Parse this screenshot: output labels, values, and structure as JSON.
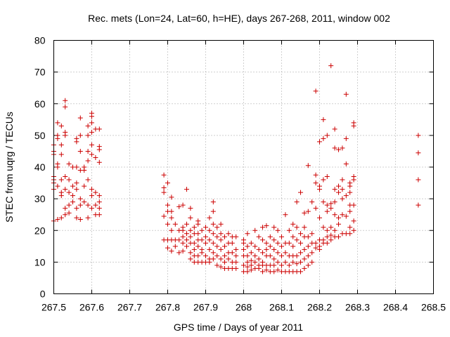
{
  "chart_data": {
    "type": "scatter",
    "title": "Rec. mets (Lon=24, Lat=60, h=HE), days 267-268, 2011, window 002",
    "xlabel": "GPS time / Days of year 2011",
    "ylabel": "STEC from uqrg / TECUs",
    "xlim": [
      267.5,
      268.5
    ],
    "ylim": [
      0,
      80
    ],
    "x_ticks": [
      "267.5",
      "267.6",
      "267.7",
      "267.8",
      "267.9",
      "268",
      "268.1",
      "268.2",
      "268.3",
      "268.4",
      "268.5"
    ],
    "y_ticks": [
      "0",
      "10",
      "20",
      "30",
      "40",
      "50",
      "60",
      "70",
      "80"
    ],
    "grid": true,
    "legend": "none",
    "marker": "plus",
    "color": "#cc0000",
    "points": [
      [
        267.5,
        23
      ],
      [
        267.5,
        33
      ],
      [
        267.5,
        35
      ],
      [
        267.5,
        36
      ],
      [
        267.5,
        37
      ],
      [
        267.5,
        44
      ],
      [
        267.5,
        45
      ],
      [
        267.5,
        47
      ],
      [
        267.51,
        23.5
      ],
      [
        267.51,
        34
      ],
      [
        267.51,
        40
      ],
      [
        267.51,
        41
      ],
      [
        267.51,
        49
      ],
      [
        267.51,
        50
      ],
      [
        267.51,
        54
      ],
      [
        267.52,
        24
      ],
      [
        267.52,
        31
      ],
      [
        267.52,
        32
      ],
      [
        267.52,
        36
      ],
      [
        267.52,
        44
      ],
      [
        267.52,
        47
      ],
      [
        267.52,
        53
      ],
      [
        267.53,
        25
      ],
      [
        267.53,
        27
      ],
      [
        267.53,
        33
      ],
      [
        267.53,
        37
      ],
      [
        267.53,
        50
      ],
      [
        267.53,
        51
      ],
      [
        267.53,
        59
      ],
      [
        267.53,
        61
      ],
      [
        267.54,
        25.5
      ],
      [
        267.54,
        28
      ],
      [
        267.54,
        32
      ],
      [
        267.54,
        36
      ],
      [
        267.54,
        41
      ],
      [
        267.55,
        29
      ],
      [
        267.55,
        31
      ],
      [
        267.55,
        34
      ],
      [
        267.55,
        40
      ],
      [
        267.56,
        24
      ],
      [
        267.56,
        27
      ],
      [
        267.56,
        33
      ],
      [
        267.56,
        35
      ],
      [
        267.56,
        40
      ],
      [
        267.56,
        48
      ],
      [
        267.56,
        49
      ],
      [
        267.57,
        23.5
      ],
      [
        267.57,
        28
      ],
      [
        267.57,
        30
      ],
      [
        267.57,
        39
      ],
      [
        267.57,
        45
      ],
      [
        267.57,
        50
      ],
      [
        267.57,
        55.5
      ],
      [
        267.58,
        29
      ],
      [
        267.58,
        34
      ],
      [
        267.58,
        39
      ],
      [
        267.58,
        40
      ],
      [
        267.59,
        24
      ],
      [
        267.59,
        28
      ],
      [
        267.59,
        36
      ],
      [
        267.59,
        42
      ],
      [
        267.59,
        45
      ],
      [
        267.59,
        50
      ],
      [
        267.59,
        53
      ],
      [
        267.6,
        27
      ],
      [
        267.6,
        31
      ],
      [
        267.6,
        33
      ],
      [
        267.6,
        44
      ],
      [
        267.6,
        47
      ],
      [
        267.6,
        51
      ],
      [
        267.6,
        54
      ],
      [
        267.6,
        56
      ],
      [
        267.6,
        57
      ],
      [
        267.61,
        25
      ],
      [
        267.61,
        28
      ],
      [
        267.61,
        32
      ],
      [
        267.61,
        43
      ],
      [
        267.61,
        52
      ],
      [
        267.62,
        25
      ],
      [
        267.62,
        27
      ],
      [
        267.62,
        29
      ],
      [
        267.62,
        31
      ],
      [
        267.62,
        41.5
      ],
      [
        267.62,
        45.5
      ],
      [
        267.62,
        46.5
      ],
      [
        267.62,
        52
      ],
      [
        267.79,
        17
      ],
      [
        267.79,
        24.5
      ],
      [
        267.79,
        32
      ],
      [
        267.79,
        33.5
      ],
      [
        267.79,
        37.5
      ],
      [
        267.8,
        14.5
      ],
      [
        267.8,
        17
      ],
      [
        267.8,
        22
      ],
      [
        267.8,
        26
      ],
      [
        267.8,
        28
      ],
      [
        267.8,
        35
      ],
      [
        267.81,
        13.5
      ],
      [
        267.81,
        17
      ],
      [
        267.81,
        20
      ],
      [
        267.81,
        24
      ],
      [
        267.81,
        26
      ],
      [
        267.81,
        30.5
      ],
      [
        267.82,
        15
      ],
      [
        267.82,
        17
      ],
      [
        267.82,
        22
      ],
      [
        267.83,
        13
      ],
      [
        267.83,
        17
      ],
      [
        267.83,
        20
      ],
      [
        267.83,
        27.5
      ],
      [
        267.84,
        13.5
      ],
      [
        267.84,
        16
      ],
      [
        267.84,
        18
      ],
      [
        267.84,
        20
      ],
      [
        267.84,
        21
      ],
      [
        267.84,
        28
      ],
      [
        267.85,
        15
      ],
      [
        267.85,
        17
      ],
      [
        267.85,
        19
      ],
      [
        267.85,
        22
      ],
      [
        267.85,
        33
      ],
      [
        267.86,
        11
      ],
      [
        267.86,
        13
      ],
      [
        267.86,
        16
      ],
      [
        267.86,
        18
      ],
      [
        267.86,
        20
      ],
      [
        267.86,
        24
      ],
      [
        267.86,
        27
      ],
      [
        267.87,
        10
      ],
      [
        267.87,
        12
      ],
      [
        267.87,
        14
      ],
      [
        267.87,
        16
      ],
      [
        267.87,
        19
      ],
      [
        267.87,
        21
      ],
      [
        267.88,
        10
      ],
      [
        267.88,
        12
      ],
      [
        267.88,
        15
      ],
      [
        267.88,
        17
      ],
      [
        267.88,
        19
      ],
      [
        267.88,
        22
      ],
      [
        267.88,
        23
      ],
      [
        267.89,
        10
      ],
      [
        267.89,
        13
      ],
      [
        267.89,
        14
      ],
      [
        267.89,
        17
      ],
      [
        267.89,
        20
      ],
      [
        267.9,
        10
      ],
      [
        267.9,
        12
      ],
      [
        267.9,
        16
      ],
      [
        267.9,
        18
      ],
      [
        267.9,
        21
      ],
      [
        267.91,
        10
      ],
      [
        267.91,
        11
      ],
      [
        267.91,
        14
      ],
      [
        267.91,
        17
      ],
      [
        267.91,
        20
      ],
      [
        267.91,
        24
      ],
      [
        267.92,
        11
      ],
      [
        267.92,
        13
      ],
      [
        267.92,
        16
      ],
      [
        267.92,
        19
      ],
      [
        267.92,
        22
      ],
      [
        267.92,
        26
      ],
      [
        267.92,
        29
      ],
      [
        267.93,
        9
      ],
      [
        267.93,
        12
      ],
      [
        267.93,
        15
      ],
      [
        267.93,
        18
      ],
      [
        267.93,
        21
      ],
      [
        267.94,
        8.5
      ],
      [
        267.94,
        11
      ],
      [
        267.94,
        14
      ],
      [
        267.94,
        17
      ],
      [
        267.94,
        19
      ],
      [
        267.94,
        22
      ],
      [
        267.95,
        8
      ],
      [
        267.95,
        10
      ],
      [
        267.95,
        12
      ],
      [
        267.95,
        15
      ],
      [
        267.95,
        18
      ],
      [
        267.96,
        8
      ],
      [
        267.96,
        11
      ],
      [
        267.96,
        13
      ],
      [
        267.96,
        16
      ],
      [
        267.96,
        19
      ],
      [
        267.97,
        8
      ],
      [
        267.97,
        10
      ],
      [
        267.97,
        13
      ],
      [
        267.97,
        16
      ],
      [
        267.97,
        18
      ],
      [
        267.98,
        8
      ],
      [
        267.98,
        10
      ],
      [
        267.98,
        12
      ],
      [
        267.98,
        14
      ],
      [
        267.98,
        18
      ],
      [
        268.0,
        7
      ],
      [
        268.0,
        9
      ],
      [
        268.0,
        12
      ],
      [
        268.0,
        14
      ],
      [
        268.0,
        16
      ],
      [
        268.0,
        17
      ],
      [
        268.01,
        7
      ],
      [
        268.01,
        8.5
      ],
      [
        268.01,
        10
      ],
      [
        268.01,
        12
      ],
      [
        268.01,
        15
      ],
      [
        268.01,
        19
      ],
      [
        268.02,
        7.5
      ],
      [
        268.02,
        9
      ],
      [
        268.02,
        10.5
      ],
      [
        268.02,
        13
      ],
      [
        268.02,
        16
      ],
      [
        268.03,
        8
      ],
      [
        268.03,
        10
      ],
      [
        268.03,
        12
      ],
      [
        268.03,
        15
      ],
      [
        268.03,
        20
      ],
      [
        268.04,
        8
      ],
      [
        268.04,
        9
      ],
      [
        268.04,
        11
      ],
      [
        268.04,
        14
      ],
      [
        268.04,
        18
      ],
      [
        268.05,
        7
      ],
      [
        268.05,
        9
      ],
      [
        268.05,
        10
      ],
      [
        268.05,
        13
      ],
      [
        268.05,
        17
      ],
      [
        268.05,
        21
      ],
      [
        268.06,
        7.5
      ],
      [
        268.06,
        9
      ],
      [
        268.06,
        12
      ],
      [
        268.06,
        14
      ],
      [
        268.06,
        16
      ],
      [
        268.06,
        21.5
      ],
      [
        268.07,
        7
      ],
      [
        268.07,
        9
      ],
      [
        268.07,
        12
      ],
      [
        268.07,
        15
      ],
      [
        268.07,
        18
      ],
      [
        268.08,
        7
      ],
      [
        268.08,
        9
      ],
      [
        268.08,
        11
      ],
      [
        268.08,
        14
      ],
      [
        268.08,
        17
      ],
      [
        268.08,
        21
      ],
      [
        268.09,
        7.5
      ],
      [
        268.09,
        10
      ],
      [
        268.09,
        13
      ],
      [
        268.09,
        16
      ],
      [
        268.09,
        20
      ],
      [
        268.1,
        7
      ],
      [
        268.1,
        9
      ],
      [
        268.1,
        12
      ],
      [
        268.1,
        15
      ],
      [
        268.1,
        18
      ],
      [
        268.11,
        7
      ],
      [
        268.11,
        10
      ],
      [
        268.11,
        13
      ],
      [
        268.11,
        16
      ],
      [
        268.11,
        25
      ],
      [
        268.12,
        7
      ],
      [
        268.12,
        9
      ],
      [
        268.12,
        12
      ],
      [
        268.12,
        16
      ],
      [
        268.12,
        20
      ],
      [
        268.13,
        7
      ],
      [
        268.13,
        10
      ],
      [
        268.13,
        12
      ],
      [
        268.13,
        15
      ],
      [
        268.13,
        18
      ],
      [
        268.13,
        22
      ],
      [
        268.14,
        7
      ],
      [
        268.14,
        9.5
      ],
      [
        268.14,
        12
      ],
      [
        268.14,
        17
      ],
      [
        268.14,
        21
      ],
      [
        268.14,
        29
      ],
      [
        268.15,
        7
      ],
      [
        268.15,
        10
      ],
      [
        268.15,
        13
      ],
      [
        268.15,
        16
      ],
      [
        268.15,
        19
      ],
      [
        268.15,
        32
      ],
      [
        268.16,
        8
      ],
      [
        268.16,
        11
      ],
      [
        268.16,
        14
      ],
      [
        268.16,
        18
      ],
      [
        268.16,
        21
      ],
      [
        268.16,
        25.5
      ],
      [
        268.17,
        9
      ],
      [
        268.17,
        12
      ],
      [
        268.17,
        15
      ],
      [
        268.17,
        18
      ],
      [
        268.17,
        26
      ],
      [
        268.17,
        40.5
      ],
      [
        268.18,
        10
      ],
      [
        268.18,
        13
      ],
      [
        268.18,
        16
      ],
      [
        268.18,
        19
      ],
      [
        268.18,
        29
      ],
      [
        268.19,
        14.5
      ],
      [
        268.19,
        16
      ],
      [
        268.19,
        27
      ],
      [
        268.19,
        35
      ],
      [
        268.19,
        37.5
      ],
      [
        268.19,
        64
      ],
      [
        268.2,
        14
      ],
      [
        268.2,
        15
      ],
      [
        268.2,
        17
      ],
      [
        268.2,
        24
      ],
      [
        268.2,
        33
      ],
      [
        268.2,
        34
      ],
      [
        268.2,
        48
      ],
      [
        268.21,
        16
      ],
      [
        268.21,
        17
      ],
      [
        268.21,
        21
      ],
      [
        268.21,
        29
      ],
      [
        268.21,
        36
      ],
      [
        268.21,
        49
      ],
      [
        268.21,
        55
      ],
      [
        268.22,
        16
      ],
      [
        268.22,
        18
      ],
      [
        268.22,
        20
      ],
      [
        268.22,
        26
      ],
      [
        268.22,
        28
      ],
      [
        268.22,
        37
      ],
      [
        268.22,
        50
      ],
      [
        268.23,
        17
      ],
      [
        268.23,
        18.5
      ],
      [
        268.23,
        21
      ],
      [
        268.23,
        27
      ],
      [
        268.23,
        28.5
      ],
      [
        268.23,
        72
      ],
      [
        268.24,
        18
      ],
      [
        268.24,
        20
      ],
      [
        268.24,
        25
      ],
      [
        268.24,
        29
      ],
      [
        268.24,
        33
      ],
      [
        268.24,
        46
      ],
      [
        268.24,
        52
      ],
      [
        268.25,
        18
      ],
      [
        268.25,
        22
      ],
      [
        268.25,
        24
      ],
      [
        268.25,
        32
      ],
      [
        268.25,
        34
      ],
      [
        268.25,
        45.5
      ],
      [
        268.26,
        19
      ],
      [
        268.26,
        25
      ],
      [
        268.26,
        30
      ],
      [
        268.26,
        33
      ],
      [
        268.26,
        36
      ],
      [
        268.26,
        46
      ],
      [
        268.27,
        19
      ],
      [
        268.27,
        24.5
      ],
      [
        268.27,
        31
      ],
      [
        268.27,
        41
      ],
      [
        268.27,
        49
      ],
      [
        268.27,
        63
      ],
      [
        268.28,
        19
      ],
      [
        268.28,
        21
      ],
      [
        268.28,
        26
      ],
      [
        268.28,
        28
      ],
      [
        268.28,
        32
      ],
      [
        268.28,
        34
      ],
      [
        268.28,
        35
      ],
      [
        268.29,
        20
      ],
      [
        268.29,
        23
      ],
      [
        268.29,
        28
      ],
      [
        268.29,
        36
      ],
      [
        268.29,
        37
      ],
      [
        268.29,
        53
      ],
      [
        268.29,
        54
      ],
      [
        268.46,
        28
      ],
      [
        268.46,
        36
      ],
      [
        268.46,
        44.5
      ],
      [
        268.46,
        50
      ]
    ]
  }
}
